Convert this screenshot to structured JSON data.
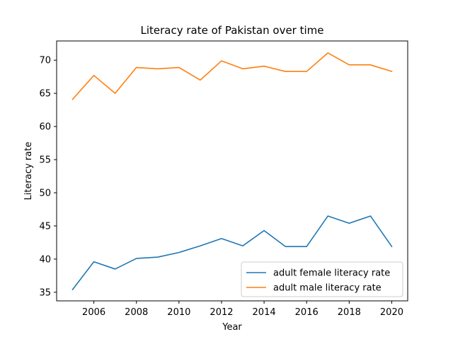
{
  "chart_data": {
    "type": "line",
    "title": "Literacy rate of Pakistan over time",
    "xlabel": "Year",
    "ylabel": "Literacy rate",
    "xlim": [
      2004.25,
      2020.75
    ],
    "ylim": [
      33.7,
      72.9
    ],
    "x_ticks": [
      2006,
      2008,
      2010,
      2012,
      2014,
      2016,
      2018,
      2020
    ],
    "y_ticks": [
      35,
      40,
      45,
      50,
      55,
      60,
      65,
      70
    ],
    "grid": false,
    "legend_position": "lower-right",
    "x": [
      2005,
      2006,
      2007,
      2008,
      2009,
      2010,
      2011,
      2012,
      2013,
      2014,
      2015,
      2016,
      2017,
      2018,
      2019,
      2020
    ],
    "series": [
      {
        "name": "adult female literacy rate",
        "color": "#1f77b4",
        "values": [
          35.4,
          39.6,
          38.5,
          40.1,
          40.3,
          41.0,
          42.0,
          43.1,
          42.0,
          44.3,
          41.9,
          41.9,
          46.5,
          45.4,
          46.5,
          41.9
        ]
      },
      {
        "name": "adult male literacy rate",
        "color": "#ff7f0e",
        "values": [
          64.1,
          67.7,
          65.0,
          68.9,
          68.7,
          68.9,
          67.0,
          69.9,
          68.7,
          69.1,
          68.3,
          68.3,
          71.1,
          69.3,
          69.3,
          68.3
        ]
      }
    ]
  }
}
